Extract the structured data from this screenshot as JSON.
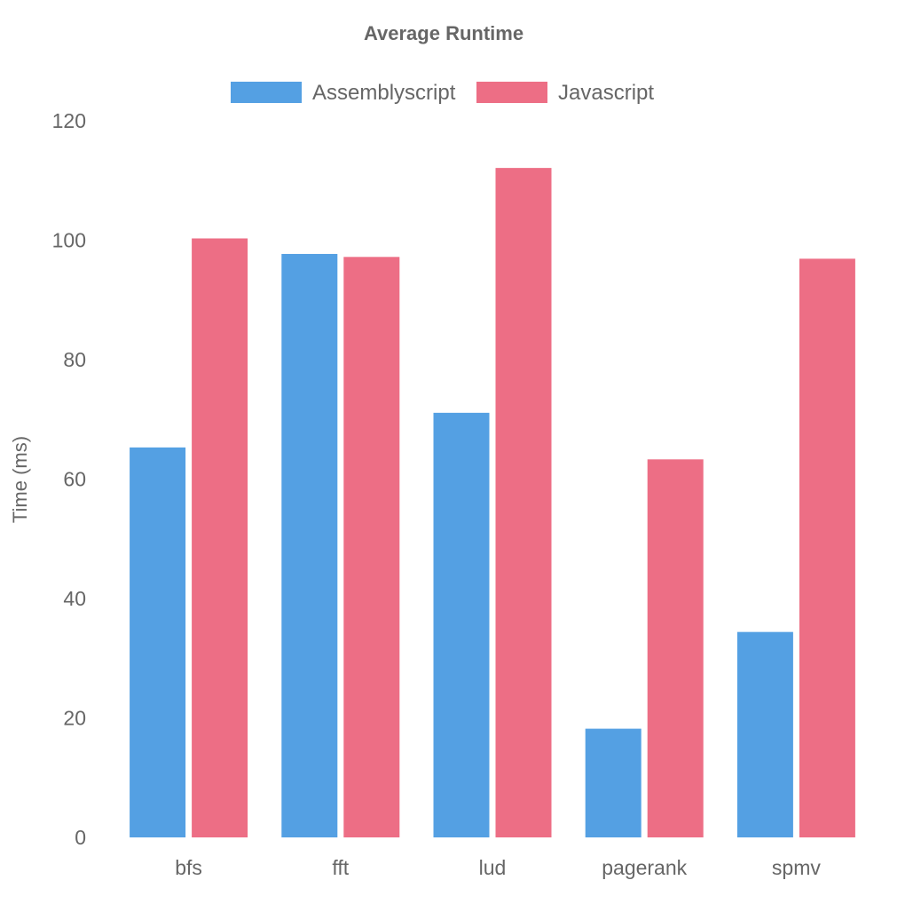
{
  "chart_data": {
    "type": "bar",
    "title": "Average Runtime",
    "xlabel": "",
    "ylabel": "Time (ms)",
    "categories": [
      "bfs",
      "fft",
      "lud",
      "pagerank",
      "spmv"
    ],
    "series": [
      {
        "name": "Assemblyscript",
        "color": "#54a0e3",
        "values": [
          65.3,
          97.7,
          71.1,
          18.2,
          34.4
        ]
      },
      {
        "name": "Javascript",
        "color": "#ed6e85",
        "values": [
          100.3,
          97.2,
          112.1,
          63.3,
          96.9
        ]
      }
    ],
    "ylim": [
      0,
      120
    ],
    "yticks": [
      0,
      20,
      40,
      60,
      80,
      100,
      120
    ],
    "grid": false,
    "legend_position": "top"
  }
}
